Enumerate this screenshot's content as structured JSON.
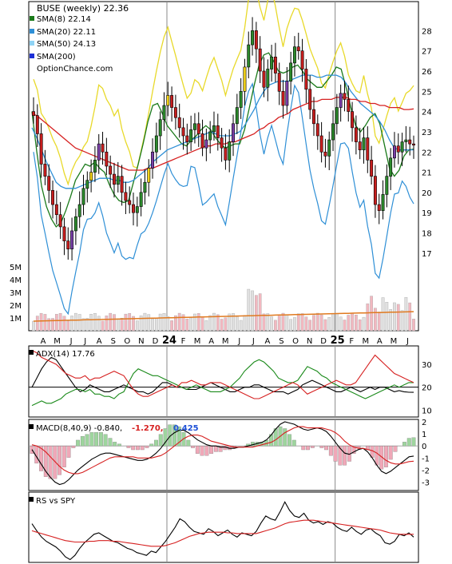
{
  "chart_data": {
    "type": "line",
    "symbol": "BUSE (weekly)",
    "last_close": "22.36",
    "legend": [
      {
        "label": "SMA(8)",
        "value": "22.14",
        "color": "#1a7a1a"
      },
      {
        "label": "SMA(20)",
        "value": "22.11",
        "color": "#2e8fd6"
      },
      {
        "label": "SMA(50)",
        "value": "24.13",
        "color": "#8fd3f5"
      },
      {
        "label": "SMA(200)",
        "value": "",
        "color": "#1c2fd6"
      }
    ],
    "watermark": "OptionChance.com",
    "price_axis": {
      "ticks": [
        17,
        18,
        19,
        20,
        21,
        22,
        23,
        24,
        25,
        26,
        27,
        28
      ],
      "ylim": [
        16.4,
        29.2
      ]
    },
    "volume_axis": {
      "ticks": [
        "1M",
        "2M",
        "3M",
        "4M",
        "5M"
      ]
    },
    "time_axis": {
      "labels": [
        "A",
        "M",
        "J",
        "J",
        "A",
        "S",
        "O",
        "N",
        "D",
        "24",
        "F",
        "M",
        "A",
        "M",
        "J",
        "J",
        "A",
        "S",
        "O",
        "N",
        "D",
        "25",
        "F",
        "M",
        "A",
        "M",
        "J"
      ],
      "year_marks": [
        "24",
        "25"
      ]
    },
    "series": [
      {
        "name": "SMA(8)",
        "values": [
          24,
          22,
          20.3,
          19.3,
          18.7,
          18.3,
          18.5,
          19.1,
          19.8,
          20.6,
          21,
          21.4,
          21.3,
          21.5,
          21.2,
          21,
          20.4,
          19.9,
          19.6,
          19.5,
          19.6,
          20.5,
          21.4,
          22.4,
          23.5,
          24.3,
          24.4,
          23.9,
          23.3,
          23,
          22.7,
          22.4,
          22.3,
          22.6,
          22.8,
          23.1,
          23.3,
          23.1,
          22.7,
          22.4,
          22.2,
          22.3,
          22.4,
          22.4,
          23.1,
          24.2,
          25.3,
          26.3,
          26.8,
          26.9,
          26.5,
          26,
          25.9,
          26,
          26.2,
          26.3,
          26,
          25.6,
          25.4,
          25.2,
          25.2,
          25.5,
          25.8,
          26.2,
          26.1,
          25.2,
          24.2,
          23.3,
          23,
          23.3,
          23.7,
          23.9,
          23.4,
          22.3,
          21.2,
          20.8,
          21.1,
          21.8,
          22.1,
          22.14
        ]
      },
      {
        "name": "SMA(20)",
        "values": [
          23.2,
          22.7,
          22.1,
          21.5,
          21,
          20.5,
          20.3,
          20.2,
          20.2,
          20.2,
          20.3,
          20.4,
          20.5,
          20.6,
          20.7,
          20.7,
          20.7,
          20.6,
          20.6,
          20.5,
          20.5,
          20.6,
          20.8,
          21,
          21.2,
          21.5,
          21.7,
          21.9,
          22.1,
          22.2,
          22.3,
          22.4,
          22.5,
          22.6,
          22.7,
          22.8,
          22.9,
          23,
          22.9,
          22.8,
          22.8,
          22.8,
          22.9,
          23,
          23.3,
          23.7,
          24.1,
          24.6,
          25,
          25.3,
          25.4,
          25.5,
          25.5,
          25.5,
          25.6,
          25.7,
          25.8,
          25.8,
          25.8,
          25.7,
          25.7,
          25.8,
          25.8,
          25.8,
          25.7,
          25.4,
          25,
          24.7,
          24.4,
          24.2,
          24,
          23.8,
          23.5,
          23.1,
          22.6,
          22.2,
          22.1,
          22.1,
          22.1,
          22.11
        ]
      },
      {
        "name": "SMA(50)",
        "values": [
          23.9,
          23.8,
          23.6,
          23.4,
          23.2,
          23,
          22.8,
          22.6,
          22.4,
          22.2,
          22.1,
          22,
          21.9,
          21.8,
          21.7,
          21.6,
          21.5,
          21.4,
          21.3,
          21.2,
          21.1,
          21.1,
          21.1,
          21.1,
          21.2,
          21.2,
          21.3,
          21.4,
          21.5,
          21.6,
          21.7,
          21.8,
          21.9,
          22,
          22.1,
          22.2,
          22.3,
          22.3,
          22.4,
          22.4,
          22.4,
          22.5,
          22.5,
          22.6,
          22.7,
          22.8,
          22.9,
          23.1,
          23.2,
          23.4,
          23.5,
          23.7,
          23.8,
          23.9,
          24.1,
          24.2,
          24.3,
          24.4,
          24.5,
          24.5,
          24.6,
          24.6,
          24.6,
          24.7,
          24.7,
          24.7,
          24.6,
          24.6,
          24.5,
          24.5,
          24.4,
          24.4,
          24.3,
          24.3,
          24.2,
          24.2,
          24.2,
          24.1,
          24.1,
          24.13
        ]
      }
    ],
    "closes": [
      23.8,
      22.9,
      21.4,
      20.8,
      20.1,
      19.4,
      18.9,
      18.3,
      17.6,
      17.2,
      18.1,
      18.8,
      19.4,
      20.2,
      20.6,
      21.0,
      21.6,
      22.4,
      22.0,
      21.3,
      20.9,
      20.4,
      20.8,
      20.0,
      19.6,
      19.4,
      19.0,
      19.3,
      20.0,
      20.5,
      21.2,
      22.0,
      22.8,
      23.6,
      24.3,
      24.8,
      24.2,
      23.7,
      23.2,
      22.8,
      22.5,
      23.1,
      23.4,
      22.9,
      22.2,
      22.6,
      23.0,
      23.3,
      22.7,
      22.2,
      21.6,
      22.5,
      23.4,
      24.2,
      25.0,
      26.2,
      27.3,
      28.0,
      27.1,
      26.0,
      25.2,
      26.1,
      26.7,
      25.9,
      25.0,
      24.3,
      25.5,
      26.4,
      27.2,
      27.0,
      26.1,
      25.1,
      24.1,
      23.4,
      22.8,
      22.0,
      21.8,
      22.6,
      23.4,
      24.2,
      24.9,
      24.6,
      24.0,
      23.2,
      22.5,
      22.1,
      22.7,
      21.6,
      20.8,
      19.4,
      19.1,
      19.9,
      20.8,
      21.7,
      22.3,
      22.0,
      22.5,
      22.6,
      22.4,
      22.36
    ],
    "panels": [
      {
        "label": "ADX(14)",
        "value": "17.76",
        "ticks": [
          10,
          20,
          30
        ],
        "ylim": [
          7,
          38
        ],
        "series": [
          {
            "role": "adx",
            "color": "#000000",
            "values": [
              20,
              24,
              28,
              31,
              33,
              32,
              29,
              26,
              23,
              20,
              18,
              19,
              21,
              20,
              19,
              18,
              18,
              19,
              20,
              21,
              20,
              19,
              18,
              18,
              17,
              18,
              20,
              22,
              22,
              21,
              20,
              20,
              19,
              19,
              19,
              20,
              21,
              22,
              21,
              20,
              19,
              18,
              18,
              19,
              20,
              20,
              21,
              21,
              20,
              19,
              18,
              18,
              18,
              17,
              18,
              19,
              21,
              22,
              23,
              22,
              21,
              20,
              19,
              18,
              18,
              19,
              20,
              19,
              18,
              19,
              20,
              19,
              20,
              20,
              19,
              18,
              18.5,
              18,
              17.8,
              17.76
            ]
          },
          {
            "role": "+di",
            "color": "#1a8a1a",
            "values": [
              12,
              13,
              14,
              13,
              13,
              14,
              15,
              17,
              18,
              19,
              19,
              18,
              19,
              17,
              17,
              16,
              16,
              15,
              17,
              18,
              22,
              26,
              28,
              27,
              26,
              25,
              25,
              24,
              23,
              22,
              21,
              20,
              19,
              20,
              21,
              20,
              19,
              18,
              18,
              18,
              19,
              20,
              22,
              24,
              27,
              29,
              31,
              32,
              31,
              29,
              27,
              24,
              23,
              22,
              22,
              23,
              26,
              29,
              28,
              27,
              25,
              24,
              22,
              21,
              20,
              19,
              18,
              17,
              16,
              15,
              16,
              17,
              18,
              19,
              20,
              21,
              20,
              21,
              22,
              22
            ]
          },
          {
            "role": "-di",
            "color": "#d62020",
            "values": [
              36,
              35,
              33,
              32,
              31,
              30,
              28,
              26,
              25,
              24,
              24,
              25,
              23,
              24,
              24,
              25,
              26,
              27,
              26,
              25,
              22,
              19,
              17,
              16,
              16,
              17,
              18,
              19,
              20,
              21,
              20,
              22,
              22,
              23,
              22,
              21,
              21,
              22,
              22,
              22,
              21,
              20,
              19,
              18,
              17,
              16,
              15,
              15,
              16,
              17,
              18,
              19,
              20,
              21,
              22,
              21,
              19,
              17,
              18,
              19,
              20,
              21,
              22,
              23,
              22,
              21,
              21,
              22,
              25,
              28,
              31,
              34,
              32,
              30,
              28,
              26,
              25,
              24,
              23,
              22
            ]
          }
        ]
      },
      {
        "label": "MACD(8,40,9)",
        "value": "-0.840,",
        "value2": "-1.270,",
        "value3": "0.425",
        "ticks": [
          2,
          1,
          0,
          -1,
          -2,
          -3
        ],
        "ylim": [
          -3.7,
          2.2
        ],
        "series": [
          {
            "role": "macd",
            "color": "#000000",
            "values": [
              -0.3,
              -0.9,
              -1.5,
              -2.1,
              -2.6,
              -3.0,
              -3.2,
              -3.1,
              -2.8,
              -2.4,
              -2.0,
              -1.7,
              -1.4,
              -1.1,
              -0.9,
              -0.7,
              -0.6,
              -0.6,
              -0.7,
              -0.8,
              -0.9,
              -1.0,
              -1.1,
              -1.2,
              -1.2,
              -1.1,
              -0.9,
              -0.6,
              -0.2,
              0.3,
              0.8,
              1.1,
              1.3,
              1.3,
              1.1,
              0.8,
              0.5,
              0.3,
              0.1,
              0.0,
              0.0,
              -0.1,
              -0.1,
              -0.2,
              -0.2,
              -0.1,
              -0.1,
              0.0,
              0.1,
              0.2,
              0.3,
              0.5,
              0.9,
              1.4,
              1.8,
              2.0,
              1.9,
              1.8,
              1.6,
              1.4,
              1.3,
              1.4,
              1.5,
              1.4,
              1.2,
              0.8,
              0.3,
              -0.2,
              -0.6,
              -0.7,
              -0.5,
              -0.3,
              -0.2,
              -0.5,
              -1.0,
              -1.6,
              -2.1,
              -2.3,
              -2.1,
              -1.8,
              -1.5,
              -1.2,
              -0.9,
              -0.84
            ]
          },
          {
            "role": "signal",
            "color": "#d62020",
            "values": [
              0.1,
              0.0,
              -0.2,
              -0.5,
              -0.9,
              -1.3,
              -1.7,
              -2.0,
              -2.2,
              -2.3,
              -2.3,
              -2.2,
              -2.0,
              -1.8,
              -1.6,
              -1.4,
              -1.2,
              -1.0,
              -0.9,
              -0.9,
              -0.9,
              -0.9,
              -0.9,
              -1.0,
              -1.0,
              -1.0,
              -1.0,
              -0.9,
              -0.8,
              -0.6,
              -0.3,
              0.0,
              0.3,
              0.6,
              0.8,
              0.9,
              0.9,
              0.8,
              0.6,
              0.4,
              0.3,
              0.2,
              0.1,
              0.0,
              -0.1,
              -0.1,
              -0.1,
              -0.1,
              -0.1,
              0.0,
              0.1,
              0.2,
              0.3,
              0.5,
              0.8,
              1.1,
              1.3,
              1.5,
              1.6,
              1.6,
              1.5,
              1.5,
              1.5,
              1.5,
              1.4,
              1.3,
              1.1,
              0.8,
              0.4,
              0.1,
              -0.1,
              -0.2,
              -0.2,
              -0.3,
              -0.4,
              -0.6,
              -0.9,
              -1.2,
              -1.4,
              -1.5,
              -1.5,
              -1.4,
              -1.3,
              -1.27
            ]
          }
        ]
      },
      {
        "label": "RS vs SPY",
        "ylim": [
          0,
          1
        ],
        "series": [
          {
            "role": "rs",
            "color": "#000000",
            "values": [
              0.55,
              0.45,
              0.36,
              0.3,
              0.26,
              0.22,
              0.16,
              0.08,
              0.04,
              0.1,
              0.2,
              0.28,
              0.34,
              0.4,
              0.42,
              0.38,
              0.34,
              0.3,
              0.28,
              0.24,
              0.2,
              0.18,
              0.14,
              0.12,
              0.1,
              0.16,
              0.14,
              0.22,
              0.3,
              0.4,
              0.5,
              0.62,
              0.58,
              0.5,
              0.44,
              0.42,
              0.4,
              0.48,
              0.44,
              0.38,
              0.42,
              0.46,
              0.4,
              0.36,
              0.42,
              0.4,
              0.38,
              0.44,
              0.56,
              0.66,
              0.62,
              0.6,
              0.72,
              0.86,
              0.74,
              0.66,
              0.64,
              0.7,
              0.6,
              0.56,
              0.58,
              0.54,
              0.58,
              0.56,
              0.5,
              0.46,
              0.44,
              0.5,
              0.44,
              0.4,
              0.46,
              0.48,
              0.42,
              0.38,
              0.28,
              0.26,
              0.3,
              0.4,
              0.38,
              0.42,
              0.36
            ]
          },
          {
            "role": "rs-ma",
            "color": "#d62020",
            "values": [
              0.45,
              0.43,
              0.41,
              0.39,
              0.37,
              0.35,
              0.33,
              0.31,
              0.3,
              0.29,
              0.29,
              0.29,
              0.3,
              0.3,
              0.31,
              0.31,
              0.31,
              0.3,
              0.3,
              0.29,
              0.28,
              0.27,
              0.26,
              0.25,
              0.24,
              0.23,
              0.23,
              0.23,
              0.24,
              0.26,
              0.28,
              0.31,
              0.34,
              0.37,
              0.39,
              0.41,
              0.42,
              0.43,
              0.43,
              0.43,
              0.43,
              0.42,
              0.42,
              0.41,
              0.41,
              0.41,
              0.41,
              0.41,
              0.43,
              0.45,
              0.47,
              0.49,
              0.52,
              0.55,
              0.57,
              0.58,
              0.59,
              0.6,
              0.6,
              0.6,
              0.59,
              0.58,
              0.57,
              0.56,
              0.55,
              0.54,
              0.53,
              0.52,
              0.51,
              0.5,
              0.49,
              0.48,
              0.47,
              0.46,
              0.44,
              0.42,
              0.41,
              0.4,
              0.4,
              0.4,
              0.4
            ]
          }
        ]
      }
    ]
  }
}
